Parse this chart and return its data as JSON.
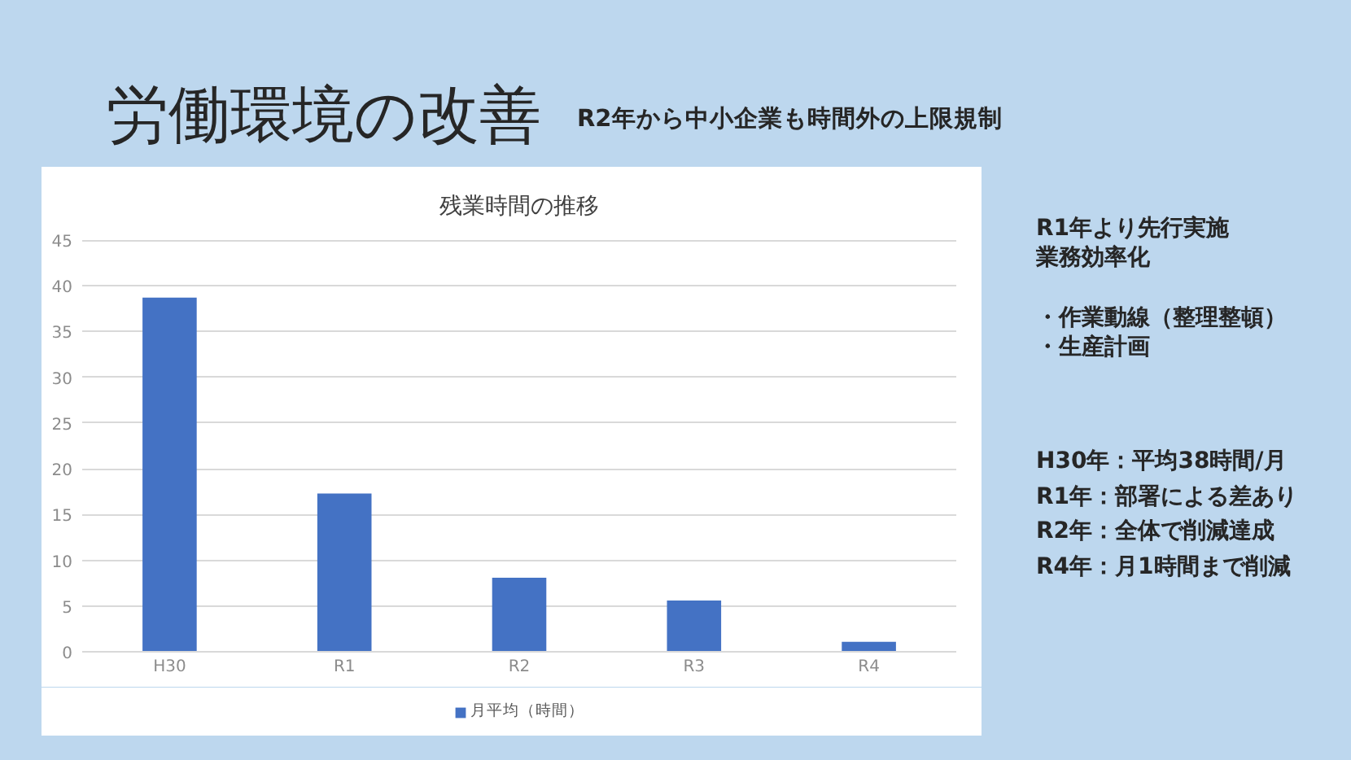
{
  "chart_data": {
    "type": "bar",
    "title": "残業時間の推移",
    "categories": [
      "H30",
      "R1",
      "R2",
      "R3",
      "R4"
    ],
    "series": [
      {
        "name": "月平均（時間）",
        "color": "#4472c4",
        "values": [
          38.7,
          17.3,
          8.1,
          5.6,
          1.1
        ]
      }
    ],
    "ylim": [
      0,
      45
    ],
    "yticks": [
      0,
      5,
      10,
      15,
      20,
      25,
      30,
      35,
      40,
      45
    ],
    "grid": "y",
    "legend": "bottom",
    "annotations": [
      "労働環境の改善",
      "R2年から中小企業も時間外の上限規制",
      "R1年より先行実施",
      "業務効率化",
      "・作業動線（整理整頓）",
      "・生産計画",
      "H30年：平均38時間/月",
      "R1年：部署による差あり",
      "R2年：全体で削減達成",
      "R4年：月1時間まで削減"
    ]
  }
}
